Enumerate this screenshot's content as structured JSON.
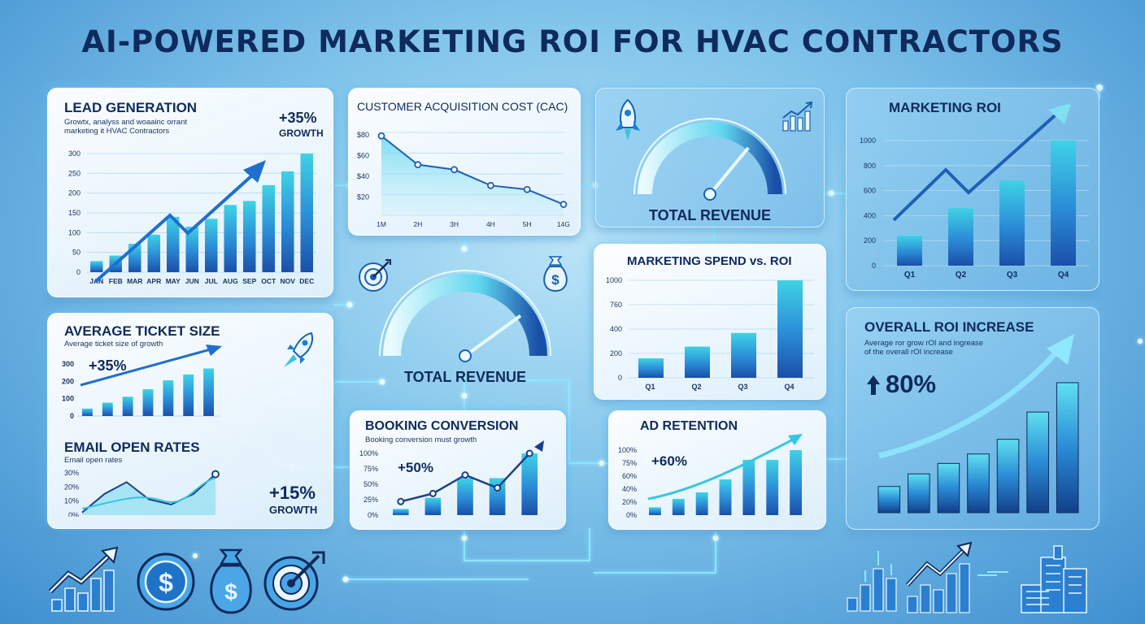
{
  "title": "AI-POWERED MARKETING ROI FOR HVAC CONTRACTORS",
  "colors": {
    "accent": "#1a7fd4",
    "dark": "#0f2a5c",
    "cyan": "#36c6e0",
    "glow": "#8fe8ff"
  },
  "lead_generation": {
    "title": "LEAD GENERATION",
    "subtitle_line1": "Growtx, analyss and woaainc orrant",
    "subtitle_line2": "marketing it HVAC Contractors",
    "stat": "+35%",
    "stat_label": "GROWTH"
  },
  "cac": {
    "title": "CUSTOMER ACQUISITION COST (CAC)"
  },
  "total_revenue_top": {
    "label": "TOTAL REVENUE",
    "value": 0.72
  },
  "total_revenue_center": {
    "label": "TOTAL REVENUE",
    "value": 0.8
  },
  "marketing_roi": {
    "title": "MARKETING ROI"
  },
  "spend_vs_roi": {
    "title": "MARKETING SPEND vs. ROI"
  },
  "avg_ticket": {
    "title": "AVERAGE TICKET SIZE",
    "subtitle": "Average ticket size of growth",
    "stat": "+35%"
  },
  "email": {
    "title": "EMAIL OPEN RATES",
    "subtitle": "Email open rates",
    "stat": "+15%",
    "stat_label": "GROWTH"
  },
  "booking": {
    "title": "BOOKING CONVERSION",
    "subtitle": "Booking conversion must growth",
    "stat": "+50%"
  },
  "ad_retention": {
    "title": "AD RETENTION",
    "stat": "+60%"
  },
  "overall": {
    "title": "OVERALL ROI INCREASE",
    "subtitle_line1": "Average ror grow rOI and ingrease",
    "subtitle_line2": "of the overall rOI increase",
    "stat": "80%"
  },
  "icons": {
    "bottom_left": [
      "growth-chart-icon",
      "dollar-coin-icon",
      "money-bag-icon",
      "target-icon"
    ],
    "bottom_right": [
      "city-chart-icon",
      "growth-arrow-icon",
      "buildings-icon"
    ]
  },
  "chart_data": [
    {
      "type": "bar",
      "title": "LEAD GENERATION",
      "categories": [
        "JAN",
        "FEB",
        "MAR",
        "APR",
        "MAY",
        "JUN",
        "JUL",
        "AUG",
        "SEP",
        "OCT",
        "NOV",
        "DEC"
      ],
      "values": [
        28,
        42,
        72,
        95,
        140,
        115,
        135,
        170,
        180,
        220,
        255,
        300
      ],
      "yticks": [
        "300",
        "250",
        "200",
        "150",
        "100",
        "50",
        "0"
      ],
      "ylim": [
        0,
        300
      ]
    },
    {
      "type": "line",
      "title": "CUSTOMER ACQUISITION COST (CAC)",
      "categories": [
        "1M",
        "2H",
        "3H",
        "4H",
        "5H",
        "14G"
      ],
      "values": [
        80,
        51,
        46,
        30,
        26,
        11
      ],
      "yticks": [
        "$80",
        "$60",
        "$40",
        "$20"
      ],
      "ylim": [
        0,
        90
      ]
    },
    {
      "type": "bar",
      "title": "MARKETING ROI",
      "categories": [
        "Q1",
        "Q2",
        "Q3",
        "Q4"
      ],
      "values": [
        240,
        460,
        680,
        1000
      ],
      "yticks": [
        "1000",
        "800",
        "600",
        "400",
        "200",
        "0"
      ],
      "ylim": [
        0,
        1000
      ]
    },
    {
      "type": "bar",
      "title": "MARKETING SPEND vs. ROI",
      "categories": [
        "Q1",
        "Q2",
        "Q3",
        "Q4"
      ],
      "values": [
        200,
        320,
        460,
        1000
      ],
      "yticks": [
        "1000",
        "760",
        "400",
        "200",
        "0"
      ],
      "ylim": [
        0,
        1000
      ]
    },
    {
      "type": "bar",
      "title": "AVERAGE TICKET SIZE",
      "values": [
        50,
        90,
        130,
        180,
        240,
        280,
        320
      ],
      "yticks": [
        "300",
        "200",
        "100",
        "0"
      ],
      "ylim": [
        0,
        350
      ]
    },
    {
      "type": "area",
      "title": "EMAIL OPEN RATES",
      "values": [
        2,
        16,
        25,
        12,
        8,
        16,
        31
      ],
      "yticks": [
        "30%",
        "20%",
        "10%",
        "0%"
      ],
      "ylim": [
        0,
        32
      ]
    },
    {
      "type": "bar",
      "title": "BOOKING CONVERSION",
      "values": [
        10,
        28,
        60,
        60,
        100
      ],
      "line": [
        22,
        35,
        65,
        44,
        100
      ],
      "yticks": [
        "100%",
        "75%",
        "50%",
        "25%",
        "0%"
      ],
      "ylim": [
        0,
        100
      ]
    },
    {
      "type": "bar",
      "title": "AD RETENTION",
      "values": [
        12,
        25,
        35,
        55,
        85,
        85,
        100
      ],
      "yticks": [
        "100%",
        "75%",
        "60%",
        "40%",
        "20%",
        "0%"
      ],
      "ylim": [
        0,
        100
      ]
    },
    {
      "type": "bar",
      "title": "OVERALL ROI INCREASE",
      "values": [
        25,
        37,
        47,
        56,
        70,
        96,
        124
      ]
    }
  ]
}
